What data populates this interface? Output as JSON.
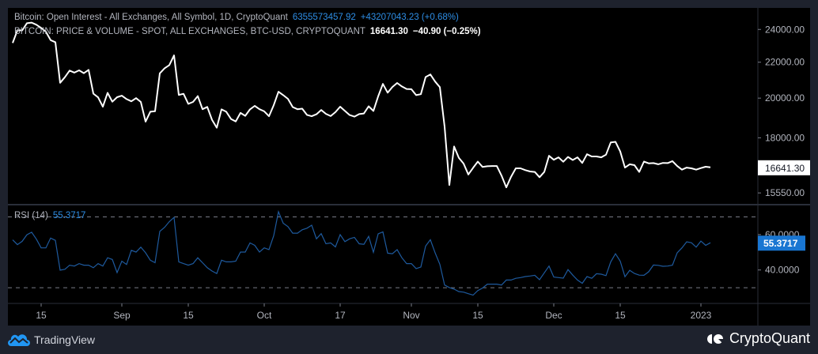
{
  "legend": {
    "oi_title": "Bitcoin: Open Interest - All Exchanges, All Symbol, 1D, CryptoQuant",
    "oi_value": "6355573457.92",
    "oi_change": "+43207043.23 (+0.68%)",
    "price_title": "BITCOIN: PRICE & VOLUME - SPOT, ALL EXCHANGES, BTC-USD, CRYPTOQUANT",
    "price_value": "16641.30",
    "price_change": "−40.90 (−0.25%)"
  },
  "rsi_legend": {
    "label": "RSI (14)",
    "value": "55.3717"
  },
  "footer": {
    "left_brand": "TradingView",
    "right_brand": "CryptoQuant"
  },
  "colors": {
    "background": "#000000",
    "frame": "#1e222d",
    "price_line": "#ffffff",
    "rsi_line": "#1e5a9e",
    "accent_blue": "#2e8ee6",
    "text": "#b2b5be"
  },
  "icons": {
    "left_logo": "tradingview-cloud-icon",
    "right_logo": "cryptoquant-icon"
  },
  "chart_data": {
    "type": "line",
    "interval": "1D",
    "x_tick_labels": [
      {
        "date": "2022-08-15",
        "label": "15"
      },
      {
        "date": "2022-09-01",
        "label": "Sep"
      },
      {
        "date": "2022-09-15",
        "label": "15"
      },
      {
        "date": "2022-10-01",
        "label": "Oct"
      },
      {
        "date": "2022-10-17",
        "label": "17"
      },
      {
        "date": "2022-11-01",
        "label": "Nov"
      },
      {
        "date": "2022-11-15",
        "label": "15"
      },
      {
        "date": "2022-12-01",
        "label": "Dec"
      },
      {
        "date": "2022-12-15",
        "label": "15"
      },
      {
        "date": "2023-01-01",
        "label": "2023"
      }
    ],
    "x_range": [
      "2022-08-08",
      "2023-01-13"
    ],
    "price_pane": {
      "scale": "log",
      "y_range": [
        15200,
        25200
      ],
      "y_tick_labels": [
        "24000.00",
        "22000.00",
        "20000.00",
        "18000.00",
        "15550.00"
      ],
      "last_value_label": "16641.30",
      "series": {
        "start": "2022-08-09",
        "values": [
          23150,
          23950,
          23940,
          24400,
          24440,
          24300,
          24100,
          23850,
          23330,
          23200,
          20830,
          21140,
          21520,
          21400,
          21530,
          21370,
          21560,
          20240,
          20040,
          19550,
          20280,
          19810,
          20050,
          20130,
          19950,
          19830,
          20000,
          19800,
          18790,
          19290,
          19320,
          21360,
          21650,
          21830,
          22400,
          20170,
          20230,
          19700,
          19800,
          20110,
          19420,
          19540,
          18880,
          18490,
          19410,
          19290,
          18920,
          18800,
          19230,
          19080,
          19410,
          19590,
          19420,
          19310,
          19060,
          19630,
          20340,
          20160,
          19960,
          19530,
          19420,
          19450,
          19130,
          19060,
          19160,
          19380,
          19180,
          19070,
          19270,
          19550,
          19330,
          19120,
          19040,
          19170,
          19200,
          19570,
          19330,
          20090,
          20770,
          20290,
          20600,
          20820,
          20630,
          20490,
          20480,
          20160,
          20210,
          21150,
          21300,
          20900,
          20590,
          18540,
          15880,
          17590,
          17070,
          16810,
          16330,
          16620,
          16900,
          16660,
          16690,
          16700,
          16700,
          16280,
          15780,
          16230,
          16600,
          16600,
          16520,
          16460,
          16440,
          16210,
          16440,
          17160,
          16980,
          17090,
          16890,
          17110,
          16970,
          17090,
          16840,
          17230,
          17130,
          17130,
          17090,
          17210,
          17780,
          17810,
          17360,
          16630,
          16780,
          16740,
          16440,
          16900,
          16820,
          16830,
          16780,
          16840,
          16830,
          16920,
          16700,
          16540,
          16630,
          16600,
          16540,
          16610,
          16670,
          16641.3
        ]
      }
    },
    "rsi_pane": {
      "y_range": [
        22,
        76
      ],
      "y_tick_labels": [
        "60.0000",
        "40.0000"
      ],
      "bands": [
        70,
        30
      ],
      "last_value_label": "55.3717",
      "series": {
        "start": "2022-08-09",
        "values": [
          57,
          54.3,
          56.2,
          59.9,
          61.3,
          57.4,
          52.5,
          52.5,
          58,
          56.7,
          39.9,
          40.4,
          42.7,
          42.2,
          43.6,
          42.7,
          42.7,
          41.3,
          43.6,
          42.2,
          46.9,
          45.9,
          38.5,
          45,
          43.1,
          51.1,
          50.1,
          52.9,
          49.7,
          45.5,
          44.1,
          61.8,
          64.1,
          67.3,
          69.7,
          44.6,
          43.6,
          42.7,
          43.6,
          46.9,
          44.1,
          41.3,
          39.4,
          38,
          45.5,
          44.6,
          44.6,
          45,
          50.1,
          50.1,
          55.3,
          53.9,
          50.1,
          52.5,
          51.5,
          59.4,
          72.9,
          66.4,
          64.5,
          60.8,
          60.8,
          62.7,
          63.6,
          65.3,
          57.6,
          60.5,
          54.8,
          55.3,
          53,
          60,
          56,
          57.6,
          58.4,
          54.8,
          54.5,
          59,
          50,
          60.4,
          61.5,
          49.5,
          49.2,
          51.5,
          46.9,
          43.6,
          43.6,
          40.8,
          41.7,
          53.5,
          57.1,
          49.7,
          43.2,
          31.5,
          30.1,
          29.2,
          27.8,
          27.5,
          26.6,
          25.8,
          28.4,
          29.8,
          32,
          32,
          32,
          31.5,
          34.3,
          34.3,
          35.3,
          35.7,
          36.3,
          36.6,
          37,
          34.5,
          38.4,
          42.2,
          36,
          35.7,
          35.4,
          40.2,
          37.1,
          34.3,
          32.5,
          36.3,
          35.3,
          37.9,
          37.6,
          36.8,
          44.6,
          49.2,
          45,
          36.2,
          39.8,
          38,
          37.1,
          37,
          39,
          42.8,
          42.6,
          42.1,
          42.2,
          42.7,
          49.7,
          52.5,
          55.9,
          55.4,
          52.9,
          56.3,
          53.9,
          55.3717
        ]
      }
    }
  }
}
